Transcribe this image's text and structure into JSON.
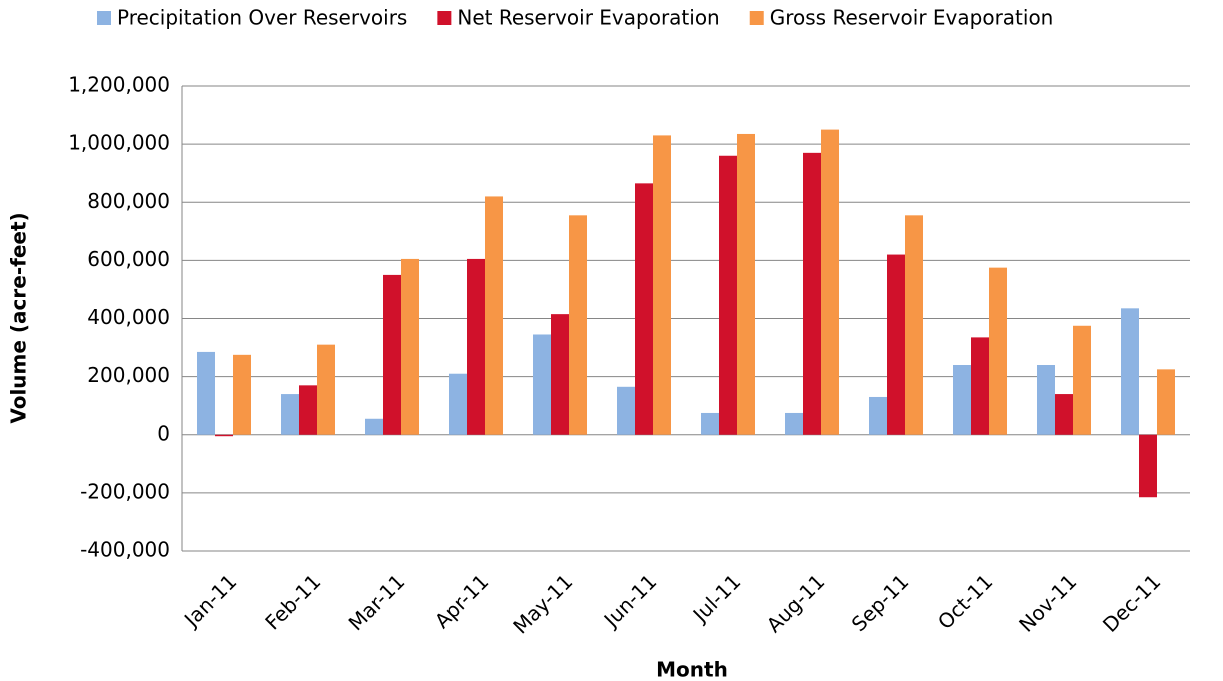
{
  "chart_data": {
    "type": "bar",
    "x_label": "Month",
    "y_label": "Volume (acre-feet)",
    "categories": [
      "Jan-11",
      "Feb-11",
      "Mar-11",
      "Apr-11",
      "May-11",
      "Jun-11",
      "Jul-11",
      "Aug-11",
      "Sep-11",
      "Oct-11",
      "Nov-11",
      "Dec-11"
    ],
    "series": [
      {
        "name": "Precipitation Over Reservoirs",
        "color": "#8db3e2",
        "values": [
          285000,
          140000,
          55000,
          210000,
          345000,
          165000,
          75000,
          75000,
          130000,
          240000,
          240000,
          435000
        ]
      },
      {
        "name": "Net Reservoir Evaporation",
        "color": "#d0112b",
        "values": [
          -5000,
          170000,
          550000,
          605000,
          415000,
          865000,
          960000,
          970000,
          620000,
          335000,
          140000,
          -215000
        ]
      },
      {
        "name": "Gross Reservoir Evaporation",
        "color": "#f79646",
        "values": [
          275000,
          310000,
          605000,
          820000,
          755000,
          1030000,
          1035000,
          1050000,
          755000,
          575000,
          375000,
          225000
        ]
      }
    ],
    "ylim": [
      -400000,
      1200000
    ],
    "yticks": [
      {
        "value": -400000,
        "label": "-400,000"
      },
      {
        "value": -200000,
        "label": "-200,000"
      },
      0,
      {
        "value": 200000,
        "label": "200,000"
      },
      {
        "value": 400000,
        "label": "400,000"
      },
      {
        "value": 600000,
        "label": "600,000"
      },
      {
        "value": 800000,
        "label": "800,000"
      },
      {
        "value": 1000000,
        "label": "1,000,000"
      },
      {
        "value": 1200000,
        "label": "1,200,000"
      }
    ],
    "grid": true,
    "legend": "top"
  }
}
